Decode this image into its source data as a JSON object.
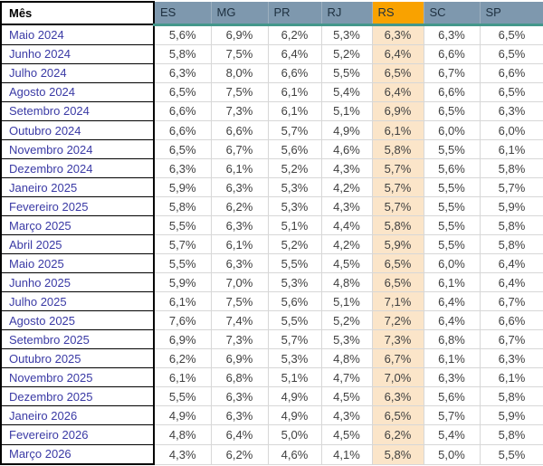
{
  "table": {
    "header": {
      "month_label": "Mês",
      "states": [
        "ES",
        "MG",
        "PR",
        "RJ",
        "RS",
        "SC",
        "SP"
      ],
      "highlighted_state": "RS"
    },
    "rows": [
      {
        "month": "Maio 2024",
        "values": [
          "5,6%",
          "6,9%",
          "6,2%",
          "5,3%",
          "6,3%",
          "6,3%",
          "6,5%"
        ]
      },
      {
        "month": "Junho 2024",
        "values": [
          "5,8%",
          "7,5%",
          "6,4%",
          "5,2%",
          "6,4%",
          "6,6%",
          "6,5%"
        ]
      },
      {
        "month": "Julho 2024",
        "values": [
          "6,3%",
          "8,0%",
          "6,6%",
          "5,5%",
          "6,5%",
          "6,7%",
          "6,6%"
        ]
      },
      {
        "month": "Agosto 2024",
        "values": [
          "6,5%",
          "7,5%",
          "6,1%",
          "5,4%",
          "6,4%",
          "6,6%",
          "6,5%"
        ]
      },
      {
        "month": "Setembro 2024",
        "values": [
          "6,6%",
          "7,3%",
          "6,1%",
          "5,1%",
          "6,9%",
          "6,5%",
          "6,3%"
        ]
      },
      {
        "month": "Outubro 2024",
        "values": [
          "6,6%",
          "6,6%",
          "5,7%",
          "4,9%",
          "6,1%",
          "6,0%",
          "6,0%"
        ]
      },
      {
        "month": "Novembro 2024",
        "values": [
          "6,5%",
          "6,7%",
          "5,6%",
          "4,6%",
          "5,8%",
          "5,5%",
          "6,1%"
        ]
      },
      {
        "month": "Dezembro 2024",
        "values": [
          "6,3%",
          "6,1%",
          "5,2%",
          "4,3%",
          "5,7%",
          "5,6%",
          "5,8%"
        ]
      },
      {
        "month": "Janeiro 2025",
        "values": [
          "5,9%",
          "6,3%",
          "5,3%",
          "4,2%",
          "5,7%",
          "5,5%",
          "5,7%"
        ]
      },
      {
        "month": "Fevereiro 2025",
        "values": [
          "5,8%",
          "6,2%",
          "5,3%",
          "4,3%",
          "5,7%",
          "5,5%",
          "5,9%"
        ]
      },
      {
        "month": "Março 2025",
        "values": [
          "5,5%",
          "6,3%",
          "5,1%",
          "4,4%",
          "5,8%",
          "5,5%",
          "5,8%"
        ]
      },
      {
        "month": "Abril 2025",
        "values": [
          "5,7%",
          "6,1%",
          "5,2%",
          "4,2%",
          "5,9%",
          "5,5%",
          "5,8%"
        ]
      },
      {
        "month": "Maio 2025",
        "values": [
          "5,5%",
          "6,3%",
          "5,5%",
          "4,5%",
          "6,5%",
          "6,0%",
          "6,4%"
        ]
      },
      {
        "month": "Junho 2025",
        "values": [
          "5,9%",
          "7,0%",
          "5,3%",
          "4,8%",
          "6,5%",
          "6,1%",
          "6,4%"
        ]
      },
      {
        "month": "Julho 2025",
        "values": [
          "6,1%",
          "7,5%",
          "5,6%",
          "5,1%",
          "7,1%",
          "6,4%",
          "6,7%"
        ]
      },
      {
        "month": "Agosto 2025",
        "values": [
          "7,6%",
          "7,4%",
          "5,5%",
          "5,2%",
          "7,2%",
          "6,4%",
          "6,6%"
        ]
      },
      {
        "month": "Setembro 2025",
        "values": [
          "6,9%",
          "7,3%",
          "5,7%",
          "5,3%",
          "7,3%",
          "6,8%",
          "6,7%"
        ]
      },
      {
        "month": "Outubro 2025",
        "values": [
          "6,2%",
          "6,9%",
          "5,3%",
          "4,8%",
          "6,7%",
          "6,1%",
          "6,3%"
        ]
      },
      {
        "month": "Novembro 2025",
        "values": [
          "6,1%",
          "6,8%",
          "5,1%",
          "4,7%",
          "7,0%",
          "6,3%",
          "6,1%"
        ]
      },
      {
        "month": "Dezembro 2025",
        "values": [
          "5,5%",
          "6,3%",
          "4,9%",
          "4,5%",
          "6,3%",
          "5,6%",
          "5,8%"
        ]
      },
      {
        "month": "Janeiro 2026",
        "values": [
          "4,9%",
          "6,3%",
          "4,9%",
          "4,3%",
          "6,5%",
          "5,7%",
          "5,9%"
        ]
      },
      {
        "month": "Fevereiro 2026",
        "values": [
          "4,8%",
          "6,4%",
          "5,0%",
          "4,5%",
          "6,2%",
          "5,4%",
          "5,8%"
        ]
      },
      {
        "month": "Março 2026",
        "values": [
          "4,3%",
          "6,2%",
          "4,6%",
          "4,1%",
          "5,8%",
          "5,0%",
          "5,5%"
        ]
      }
    ]
  },
  "colors": {
    "header_bg": "#7e98ae",
    "header_text": "#1d2f3f",
    "header_underline": "#44978b",
    "header_divider": "#9db0bf",
    "highlight_header_bg": "#f9a200",
    "highlight_col_bg": "#fbe5c9",
    "month_text": "#3a3aa5",
    "value_text": "#404040",
    "grid": "#d7d7d7",
    "border": "#000000"
  }
}
